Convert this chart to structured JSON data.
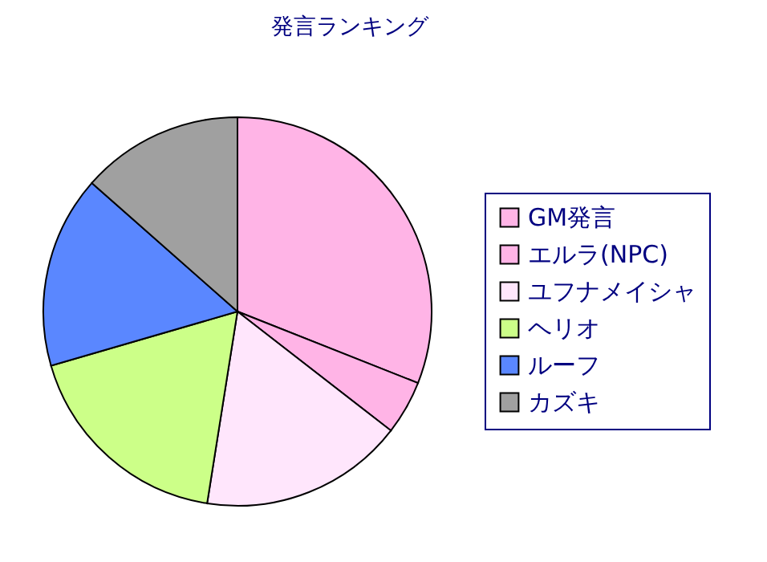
{
  "chart_data": {
    "type": "pie",
    "title": "発言ランキング",
    "categories": [
      "GM発言",
      "エルラ(NPC)",
      "ユフナメイシャ",
      "ヘリオ",
      "ルーフ",
      "カズキ"
    ],
    "values": [
      31,
      4.5,
      17,
      18,
      16,
      13.5
    ],
    "colors": [
      "#ffb4e6",
      "#ffb4e6",
      "#ffe6fc",
      "#ccff88",
      "#5a87ff",
      "#a0a0a0"
    ],
    "legend": "right"
  }
}
